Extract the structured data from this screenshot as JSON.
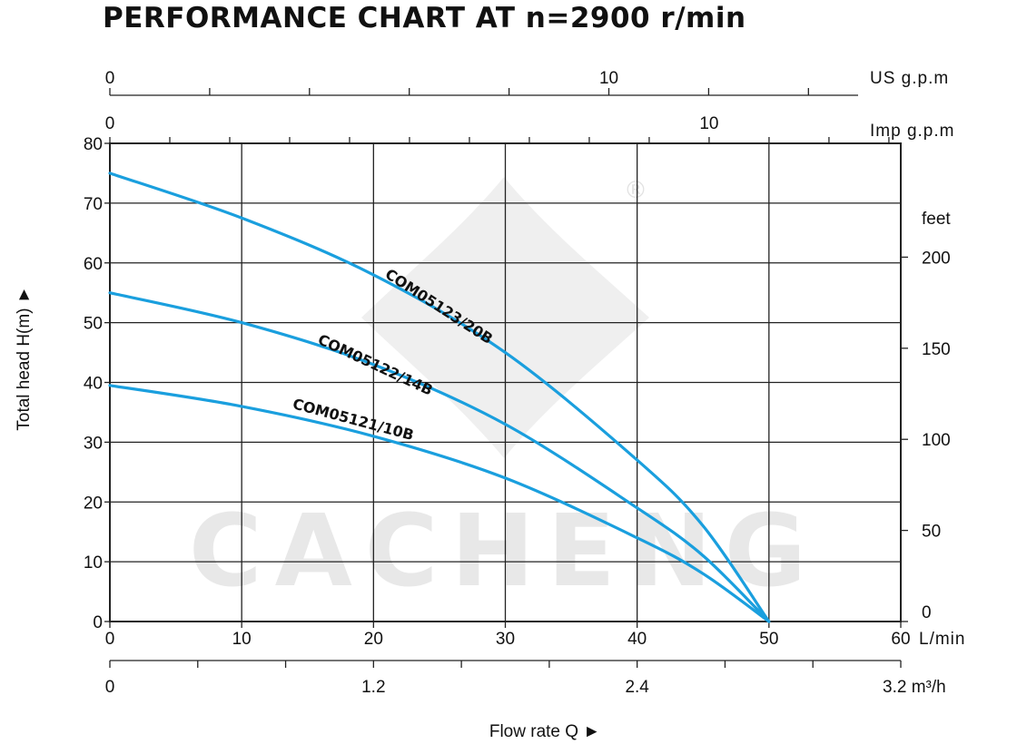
{
  "title": "PERFORMANCE CHART AT n=2900 r/min",
  "watermark": "CACHENG",
  "registered_mark": "®",
  "colors": {
    "curve": "#1a9fde",
    "grid": "#222222",
    "watermark": "#e8e8e8"
  },
  "chart_data": {
    "type": "line",
    "x_axis": {
      "label": "Flow rate  Q ►",
      "unit": "L/min",
      "range": [
        0,
        60
      ],
      "ticks": [
        "0",
        "10",
        "20",
        "30",
        "40",
        "50",
        "60"
      ]
    },
    "y_axis": {
      "label": "Total  head H(m) ►",
      "range": [
        0,
        80
      ],
      "ticks": [
        "0",
        "10",
        "20",
        "30",
        "40",
        "50",
        "60",
        "70",
        "80"
      ]
    },
    "right_axis": {
      "unit": "feet",
      "ticks": [
        "0",
        "50",
        "100",
        "150",
        "200"
      ]
    },
    "top_axes": [
      {
        "unit": "US g.p.m",
        "ticks": [
          "0",
          "10"
        ]
      },
      {
        "unit": "Imp g.p.m",
        "ticks": [
          "0",
          "10"
        ]
      }
    ],
    "bottom_axis_m3h": {
      "unit": "3.2 m³/h",
      "ticks": [
        "0",
        "1.2",
        "2.4"
      ]
    },
    "grid": true,
    "series": [
      {
        "name": "COM05123/20B",
        "x": [
          0,
          10,
          20,
          30,
          40,
          45,
          50
        ],
        "y": [
          75,
          67.5,
          58,
          45,
          27,
          16,
          0
        ]
      },
      {
        "name": "COM05122/14B",
        "x": [
          0,
          10,
          20,
          30,
          40,
          45,
          50
        ],
        "y": [
          55,
          50,
          43,
          33,
          19,
          11,
          0
        ]
      },
      {
        "name": "COM05121/10B",
        "x": [
          0,
          10,
          20,
          30,
          40,
          45,
          50
        ],
        "y": [
          39.5,
          36,
          31,
          24,
          14,
          8,
          0
        ]
      }
    ]
  }
}
